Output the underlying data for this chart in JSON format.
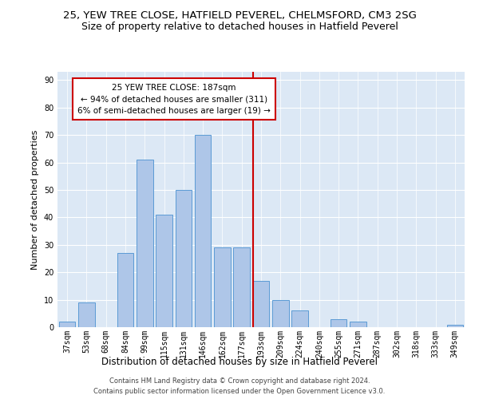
{
  "title": "25, YEW TREE CLOSE, HATFIELD PEVEREL, CHELMSFORD, CM3 2SG",
  "subtitle": "Size of property relative to detached houses in Hatfield Peverel",
  "xlabel": "Distribution of detached houses by size in Hatfield Peverel",
  "ylabel": "Number of detached properties",
  "categories": [
    "37sqm",
    "53sqm",
    "68sqm",
    "84sqm",
    "99sqm",
    "115sqm",
    "131sqm",
    "146sqm",
    "162sqm",
    "177sqm",
    "193sqm",
    "209sqm",
    "224sqm",
    "240sqm",
    "255sqm",
    "271sqm",
    "287sqm",
    "302sqm",
    "318sqm",
    "333sqm",
    "349sqm"
  ],
  "values": [
    2,
    9,
    0,
    27,
    61,
    41,
    50,
    70,
    29,
    29,
    17,
    10,
    6,
    0,
    3,
    2,
    0,
    0,
    0,
    0,
    1
  ],
  "bar_color": "#aec6e8",
  "bar_edge_color": "#5b9bd5",
  "vline_color": "#cc0000",
  "annotation_text": "25 YEW TREE CLOSE: 187sqm\n← 94% of detached houses are smaller (311)\n6% of semi-detached houses are larger (19) →",
  "annotation_box_color": "#ffffff",
  "annotation_box_edge": "#cc0000",
  "ylim": [
    0,
    93
  ],
  "yticks": [
    0,
    10,
    20,
    30,
    40,
    50,
    60,
    70,
    80,
    90
  ],
  "background_color": "#dce8f5",
  "footer": "Contains HM Land Registry data © Crown copyright and database right 2024.\nContains public sector information licensed under the Open Government Licence v3.0.",
  "title_fontsize": 9.5,
  "subtitle_fontsize": 9,
  "xlabel_fontsize": 8.5,
  "ylabel_fontsize": 8,
  "tick_fontsize": 7,
  "footer_fontsize": 6
}
